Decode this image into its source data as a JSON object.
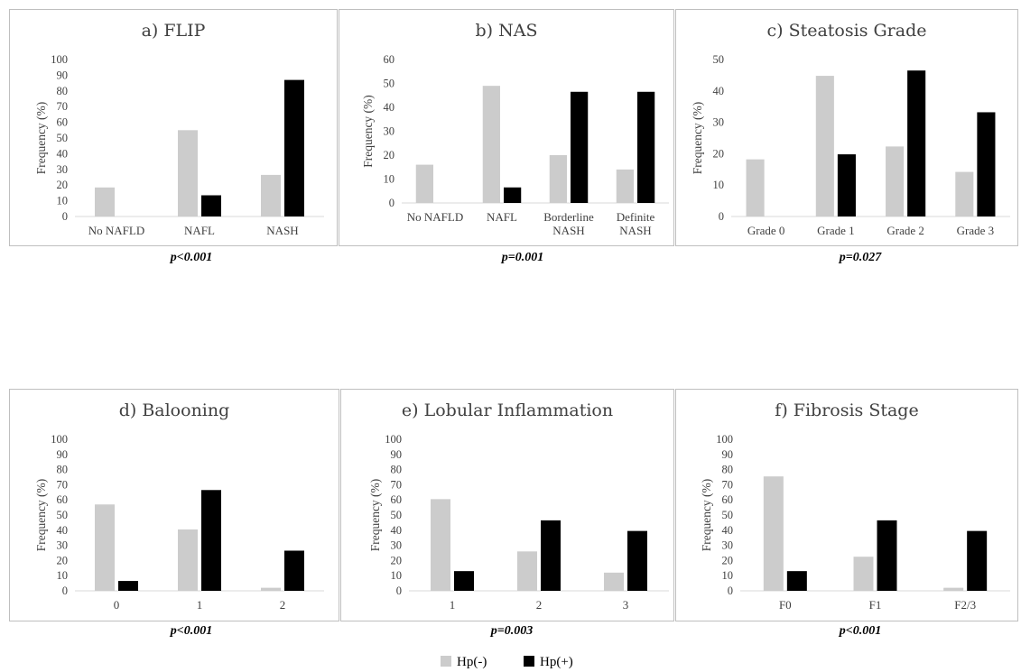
{
  "legend": {
    "hp_neg": {
      "label": "Hp(-)",
      "color": "#cccccc"
    },
    "hp_pos": {
      "label": "Hp(+)",
      "color": "#000000"
    }
  },
  "chart_data": [
    {
      "type": "bar",
      "title": "a) FLIP",
      "ylabel": "Frequency (%)",
      "ylim": [
        0,
        100
      ],
      "yticks": [
        0,
        10,
        20,
        30,
        40,
        50,
        60,
        70,
        80,
        90,
        100
      ],
      "categories": [
        "No NAFLD",
        "NAFL",
        "NASH"
      ],
      "series": [
        {
          "name": "Hp(-)",
          "values": [
            18.5,
            55,
            26.5
          ]
        },
        {
          "name": "Hp(+)",
          "values": [
            0,
            13.5,
            87
          ]
        }
      ],
      "pvalue": "p<0.001"
    },
    {
      "type": "bar",
      "title": "b) NAS",
      "ylabel": "Frequency (%)",
      "ylim": [
        0,
        60
      ],
      "yticks": [
        0,
        10,
        20,
        30,
        40,
        50,
        60
      ],
      "categories": [
        "No NAFLD",
        "NAFL",
        "Borderline\nNASH",
        "Definite\nNASH"
      ],
      "series": [
        {
          "name": "Hp(-)",
          "values": [
            16,
            49,
            20,
            14
          ]
        },
        {
          "name": "Hp(+)",
          "values": [
            0,
            6.5,
            46.5,
            46.5
          ]
        }
      ],
      "pvalue": "p=0.001"
    },
    {
      "type": "bar",
      "title": "c) Steatosis Grade",
      "ylabel": "Frequency (%)",
      "ylim": [
        0,
        50
      ],
      "yticks": [
        0,
        10,
        20,
        30,
        40,
        50
      ],
      "categories": [
        "Grade 0",
        "Grade 1",
        "Grade 2",
        "Grade 3"
      ],
      "series": [
        {
          "name": "Hp(-)",
          "values": [
            18.2,
            44.8,
            22.3,
            14.2
          ]
        },
        {
          "name": "Hp(+)",
          "values": [
            0,
            19.8,
            46.5,
            33.2
          ]
        }
      ],
      "pvalue": "p=0.027"
    },
    {
      "type": "bar",
      "title": "d) Balooning",
      "ylabel": "Frequency (%)",
      "ylim": [
        0,
        100
      ],
      "yticks": [
        0,
        10,
        20,
        30,
        40,
        50,
        60,
        70,
        80,
        90,
        100
      ],
      "categories": [
        "0",
        "1",
        "2"
      ],
      "series": [
        {
          "name": "Hp(-)",
          "values": [
            57,
            40.5,
            2
          ]
        },
        {
          "name": "Hp(+)",
          "values": [
            6.5,
            66.5,
            26.5
          ]
        }
      ],
      "pvalue": "p<0.001"
    },
    {
      "type": "bar",
      "title": "e) Lobular Inflammation",
      "ylabel": "Frequency (%)",
      "ylim": [
        0,
        100
      ],
      "yticks": [
        0,
        10,
        20,
        30,
        40,
        50,
        60,
        70,
        80,
        90,
        100
      ],
      "categories": [
        "1",
        "2",
        "3"
      ],
      "series": [
        {
          "name": "Hp(-)",
          "values": [
            60.5,
            26,
            12
          ]
        },
        {
          "name": "Hp(+)",
          "values": [
            13,
            46.5,
            39.5
          ]
        }
      ],
      "pvalue": "p=0.003"
    },
    {
      "type": "bar",
      "title": "f) Fibrosis Stage",
      "ylabel": "Frequency (%)",
      "ylim": [
        0,
        100
      ],
      "yticks": [
        0,
        10,
        20,
        30,
        40,
        50,
        60,
        70,
        80,
        90,
        100
      ],
      "categories": [
        "F0",
        "F1",
        "F2/3"
      ],
      "series": [
        {
          "name": "Hp(-)",
          "values": [
            75.5,
            22.5,
            2
          ]
        },
        {
          "name": "Hp(+)",
          "values": [
            13,
            46.5,
            39.5
          ]
        }
      ],
      "pvalue": "p<0.001"
    }
  ]
}
